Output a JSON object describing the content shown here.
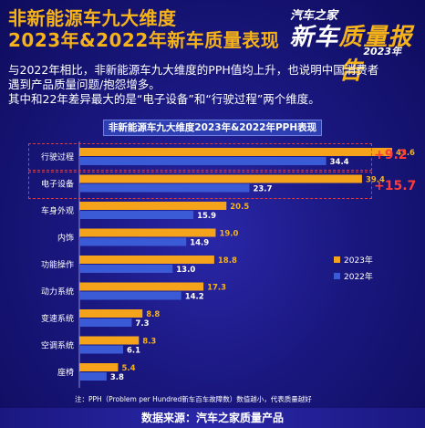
{
  "header": {
    "title_line1": "非新能源车九大维度",
    "title_line2": "2023年&2022年新车质量表现"
  },
  "logo": {
    "brand": "汽车之家",
    "main_prefix": "新车",
    "main_suffix": "质量报告",
    "year": "2023年"
  },
  "description": {
    "line1": "与2022年相比，非新能源车九大维度的PPH值均上升，也说明中国消费者",
    "line2": "遇到产品质量问题/抱怨增多。",
    "line3": "其中和22年差异最大的是“电子设备”和“行驶过程”两个维度。"
  },
  "highlights": {
    "diff1": "+9.2",
    "diff2": "+15.7",
    "color": "#ff3b3b"
  },
  "chart_data": {
    "type": "bar",
    "orientation": "horizontal",
    "title": "非新能源车九大维度2023年&2022年PPH表现",
    "categories": [
      "行驶过程",
      "电子设备",
      "车身外观",
      "内饰",
      "功能操作",
      "动力系统",
      "变速系统",
      "空调系统",
      "座椅"
    ],
    "series": [
      {
        "name": "2023年",
        "color": "#f5a31a",
        "values": [
          43.6,
          39.4,
          20.5,
          19.0,
          18.8,
          17.3,
          8.8,
          8.3,
          5.4
        ]
      },
      {
        "name": "2022年",
        "color": "#3b5bd6",
        "values": [
          34.4,
          23.7,
          15.9,
          14.9,
          13.0,
          14.2,
          7.3,
          6.1,
          3.8
        ]
      }
    ],
    "value_labels_2023": [
      "43.6",
      "39.4",
      "20.5",
      "19.0",
      "18.8",
      "17.3",
      "8.8",
      "8.3",
      "5.4"
    ],
    "value_labels_2022": [
      "34.4",
      "23.7",
      "15.9",
      "14.9",
      "13.0",
      "14.2",
      "7.3",
      "6.1",
      "3.8"
    ],
    "xlim": [
      0,
      45
    ],
    "legend_position": "right"
  },
  "note": "注：PPH（Problem per Hundred新车百车故障数）数值越小，代表质量越好",
  "footer": "数据来源：汽车之家质量产品"
}
